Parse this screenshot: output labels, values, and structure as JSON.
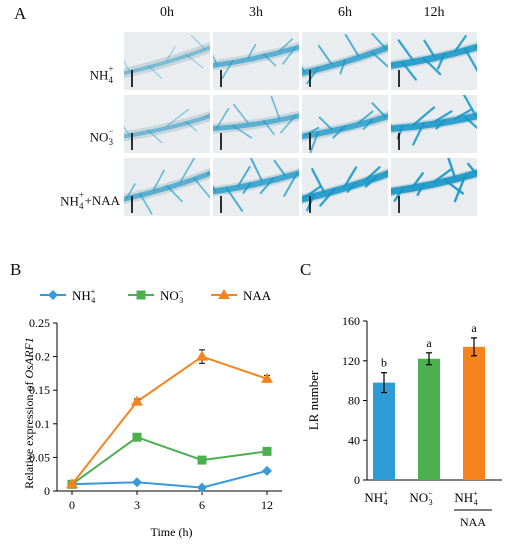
{
  "panels": {
    "a": "A",
    "b": "B",
    "c": "C"
  },
  "panel_a": {
    "times": [
      "0h",
      "3h",
      "6h",
      "12h"
    ],
    "rows": [
      {
        "label_main": "NH",
        "label_sub": "4",
        "label_sup": "+",
        "label_tail": ""
      },
      {
        "label_main": "NO",
        "label_sub": "3",
        "label_sup": "−",
        "label_tail": ""
      },
      {
        "label_main": "NH",
        "label_sub": "4",
        "label_sup": "+",
        "label_tail": "+NAA"
      }
    ]
  },
  "chart_data": [
    {
      "type": "line",
      "ylabel_prefix": "Relative expression of ",
      "ylabel_gene": "OsARF1",
      "xlabel": "Time  (h)",
      "x": [
        0,
        3,
        6,
        12
      ],
      "x_tick_labels": [
        "0",
        "3",
        "6",
        "12"
      ],
      "ylim": [
        0,
        0.25
      ],
      "y_ticks": [
        "0",
        "0.05",
        "0.1",
        "0.15",
        "0.2",
        "0.25"
      ],
      "series": [
        {
          "name": "NH4+",
          "legend_main": "NH",
          "legend_sub": "4",
          "legend_sup": "+",
          "color": "#3A9AD9",
          "marker": "diamond",
          "values": [
            0.01,
            0.013,
            0.005,
            0.03
          ],
          "errors": [
            0.0,
            0.0,
            0.0,
            0.0
          ]
        },
        {
          "name": "NO3-",
          "legend_main": "NO",
          "legend_sub": "3",
          "legend_sup": "−",
          "color": "#4CAF50",
          "marker": "square",
          "values": [
            0.01,
            0.08,
            0.046,
            0.059
          ],
          "errors": [
            0.0,
            0.0,
            0.0,
            0.0
          ]
        },
        {
          "name": "NAA",
          "legend_main": "NAA",
          "legend_sub": "",
          "legend_sup": "",
          "color": "#F5841F",
          "marker": "triangle",
          "values": [
            0.01,
            0.133,
            0.2,
            0.167
          ],
          "errors": [
            0.0,
            0.004,
            0.01,
            0.005
          ]
        }
      ]
    },
    {
      "type": "bar",
      "ylabel": "LR number",
      "ylim": [
        0,
        160
      ],
      "y_ticks": [
        "0",
        "40",
        "80",
        "120",
        "160"
      ],
      "categories": [
        {
          "main": "NH",
          "sub": "4",
          "sup": "+",
          "under": ""
        },
        {
          "main": "NO",
          "sub": "3",
          "sup": "−",
          "under": ""
        },
        {
          "main": "NH",
          "sub": "4",
          "sup": "+",
          "under": "NAA"
        }
      ],
      "values": [
        98,
        122,
        134
      ],
      "errors": [
        10,
        6,
        9
      ],
      "colors": [
        "#2E9AD6",
        "#4CAF50",
        "#F5841F"
      ],
      "letters": [
        "b",
        "a",
        "a"
      ]
    }
  ]
}
